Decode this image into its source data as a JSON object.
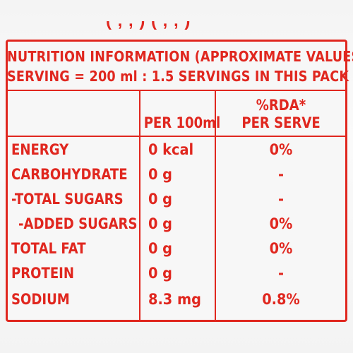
{
  "label": {
    "title_line1": "NUTRITION INFORMATION (APPROXIMATE VALUES)",
    "title_line2": "SERVING = 200 ml : 1.5 SERVINGS IN THIS PACK",
    "col_per100_header": "PER 100ml",
    "col_rda_header_line1": "%RDA*",
    "col_rda_header_line2": "PER SERVE",
    "rows": [
      {
        "name": "ENERGY",
        "per100": "0 kcal",
        "rda": "0%"
      },
      {
        "name": "CARBOHYDRATE",
        "per100": "0 g",
        "rda": "-"
      },
      {
        "name": "-TOTAL SUGARS",
        "per100": "0 g",
        "rda": "-"
      },
      {
        "name": "-ADDED SUGARS",
        "per100": "0 g",
        "rda": "0%"
      },
      {
        "name": "TOTAL FAT",
        "per100": "0 g",
        "rda": "0%"
      },
      {
        "name": "PROTEIN",
        "per100": "0 g",
        "rda": "-"
      },
      {
        "name": "SODIUM",
        "per100": "8.3 mg",
        "rda": "0.8%"
      }
    ]
  },
  "colors": {
    "ink": "#e0271f",
    "background": "#f7f7f7"
  }
}
